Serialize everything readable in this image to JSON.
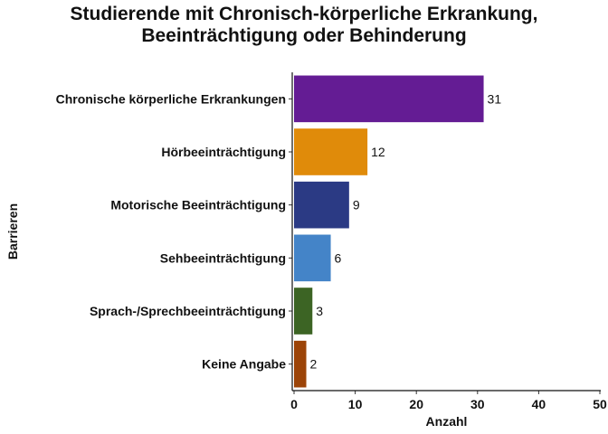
{
  "chart_data": {
    "type": "bar",
    "orientation": "horizontal",
    "title_lines": [
      "Studierende mit Chronisch-körperliche Erkrankung,",
      "Beeinträchtigung  oder Behinderung"
    ],
    "xlabel": "Anzahl",
    "ylabel": "Barrieren",
    "xlim": [
      0,
      50
    ],
    "xticks": [
      "0",
      "10",
      "20",
      "30",
      "40",
      "50"
    ],
    "grid": false,
    "categories": [
      "Chronische körperliche Erkrankungen",
      "Hörbeeinträchtigung",
      "Motorische Beeinträchtigung",
      "Sehbeeinträchtigung",
      "Sprach-/Sprechbeeinträchtigung",
      "Keine Angabe"
    ],
    "values": [
      31,
      12,
      9,
      6,
      3,
      2
    ],
    "data_labels": [
      "31",
      "12",
      "9",
      "6",
      "3",
      "2"
    ],
    "colors": [
      "#641c94",
      "#e08b0a",
      "#2b3a84",
      "#4484c8",
      "#3c6424",
      "#9c4408"
    ]
  }
}
